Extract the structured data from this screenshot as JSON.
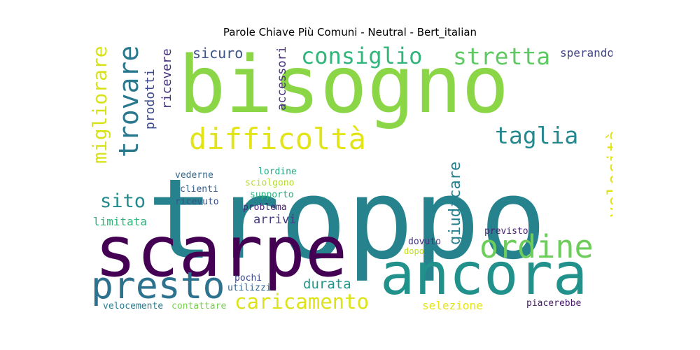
{
  "chart_data": {
    "type": "wordcloud",
    "title": "Parole Chiave Più Comuni - Neutral - Bert_italian",
    "words": [
      {
        "text": "troppo",
        "color": "#26838e"
      },
      {
        "text": "bisogno",
        "color": "#8bd646"
      },
      {
        "text": "scarpe",
        "color": "#440154"
      },
      {
        "text": "ancora",
        "color": "#21918c"
      },
      {
        "text": "presto",
        "color": "#2c728e"
      },
      {
        "text": "ordine",
        "color": "#6ccd5a"
      },
      {
        "text": "difficoltà",
        "color": "#e2e418"
      },
      {
        "text": "trovare",
        "color": "#2a788e"
      },
      {
        "text": "stretta",
        "color": "#5ec962"
      },
      {
        "text": "consiglio",
        "color": "#31b57b"
      },
      {
        "text": "taglia",
        "color": "#23898e"
      },
      {
        "text": "caricamento",
        "color": "#dde318"
      },
      {
        "text": "migliorare",
        "color": "#d8e219"
      },
      {
        "text": "velocità",
        "color": "#e0e21b"
      },
      {
        "text": "sito",
        "color": "#238a8d"
      },
      {
        "text": "sicuro",
        "color": "#3b528b"
      },
      {
        "text": "giudicare",
        "color": "#27808e"
      },
      {
        "text": "sperando",
        "color": "#414487"
      },
      {
        "text": "durata",
        "color": "#1f968b"
      },
      {
        "text": "prodotti",
        "color": "#3e4a89"
      },
      {
        "text": "ricevere",
        "color": "#46327e"
      },
      {
        "text": "accessori",
        "color": "#472f7d"
      },
      {
        "text": "arrivi",
        "color": "#443983"
      },
      {
        "text": "limitata",
        "color": "#2fb47c"
      },
      {
        "text": "selezione",
        "color": "#e5e419"
      },
      {
        "text": "lordine",
        "color": "#25ac82"
      },
      {
        "text": "sciolgono",
        "color": "#b5de2b"
      },
      {
        "text": "supporto",
        "color": "#2ab07f"
      },
      {
        "text": "problema",
        "color": "#482576"
      },
      {
        "text": "vederne",
        "color": "#30688e"
      },
      {
        "text": "clienti",
        "color": "#355f8d"
      },
      {
        "text": "ricevuto",
        "color": "#3b528b"
      },
      {
        "text": "previsto",
        "color": "#482173"
      },
      {
        "text": "dovuto",
        "color": "#46337e"
      },
      {
        "text": "dopo",
        "color": "#c2df23"
      },
      {
        "text": "pochi",
        "color": "#3f4889"
      },
      {
        "text": "utilizzi",
        "color": "#33638d"
      },
      {
        "text": "velocemente",
        "color": "#287d8e"
      },
      {
        "text": "contattare",
        "color": "#7ad151"
      },
      {
        "text": "piacerebbe",
        "color": "#481a6c"
      }
    ]
  }
}
